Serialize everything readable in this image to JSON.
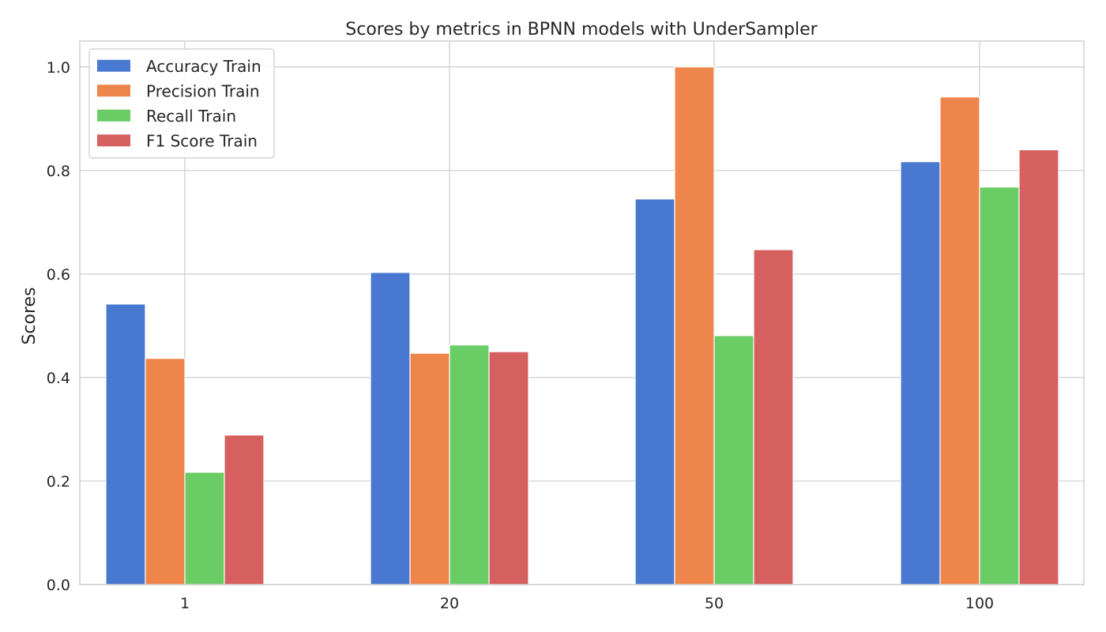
{
  "chart_data": {
    "type": "bar",
    "title": "Scores by metrics in BPNN models with UnderSampler",
    "xlabel": "",
    "ylabel": "Scores",
    "categories": [
      "1",
      "20",
      "50",
      "100"
    ],
    "ylim": [
      0,
      1.05
    ],
    "yticks": [
      0.0,
      0.2,
      0.4,
      0.6,
      0.8,
      1.0
    ],
    "ytick_labels": [
      "0.0",
      "0.2",
      "0.4",
      "0.6",
      "0.8",
      "1.0"
    ],
    "grid": true,
    "legend_position": "top-left",
    "series": [
      {
        "name": "Accuracy Train",
        "color": "#4878d0",
        "values": [
          0.542,
          0.603,
          0.745,
          0.817
        ]
      },
      {
        "name": "Precision Train",
        "color": "#ee854a",
        "values": [
          0.437,
          0.447,
          1.0,
          0.942
        ]
      },
      {
        "name": "Recall Train",
        "color": "#6acc64",
        "values": [
          0.217,
          0.463,
          0.481,
          0.768
        ]
      },
      {
        "name": "F1 Score Train",
        "color": "#d65f5f",
        "values": [
          0.289,
          0.45,
          0.647,
          0.84
        ]
      }
    ]
  }
}
